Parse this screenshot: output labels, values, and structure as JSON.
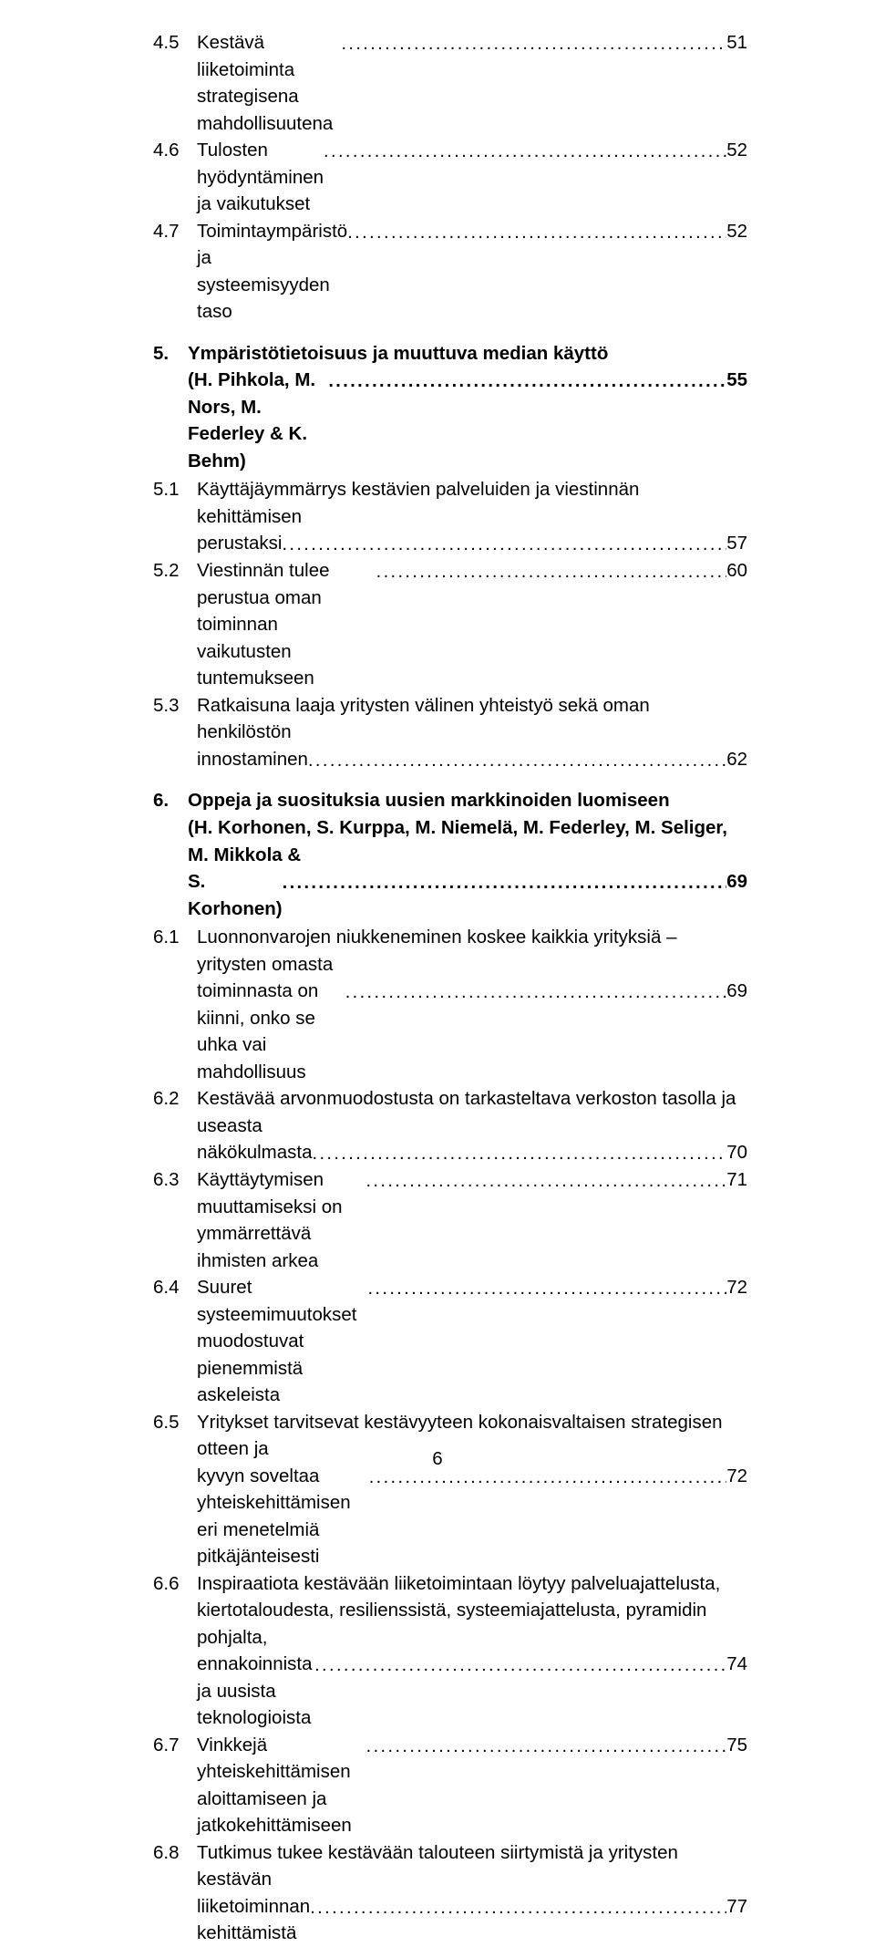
{
  "entries": [
    {
      "level": 2,
      "num": "4.5",
      "lines": [
        "Kestävä liiketoiminta strategisena mahdollisuutena"
      ],
      "page": "51"
    },
    {
      "level": 2,
      "num": "4.6",
      "lines": [
        "Tulosten hyödyntäminen ja vaikutukset"
      ],
      "page": "52"
    },
    {
      "level": 2,
      "num": "4.7",
      "lines": [
        "Toimintaympäristö ja systeemisyyden taso"
      ],
      "page": "52"
    },
    {
      "level": 1,
      "num": "5.",
      "lines": [
        "Ympäristötietoisuus ja muuttuva median käyttö",
        "(H. Pihkola, M. Nors, M. Federley & K. Behm)"
      ],
      "page": "55"
    },
    {
      "level": 2,
      "num": "5.1",
      "lines": [
        "Käyttäjäymmärrys kestävien palveluiden ja viestinnän kehittämisen",
        "perustaksi"
      ],
      "page": "57"
    },
    {
      "level": 2,
      "num": "5.2",
      "lines": [
        "Viestinnän tulee perustua oman toiminnan vaikutusten tuntemukseen"
      ],
      "page": "60"
    },
    {
      "level": 2,
      "num": "5.3",
      "lines": [
        "Ratkaisuna laaja yritysten välinen yhteistyö sekä oman henkilöstön",
        "innostaminen"
      ],
      "page": "62"
    },
    {
      "level": 1,
      "num": "6.",
      "lines": [
        "Oppeja ja suosituksia uusien markkinoiden luomiseen",
        "(H. Korhonen, S. Kurppa, M. Niemelä, M. Federley, M. Seliger, M. Mikkola &",
        "S. Korhonen)"
      ],
      "page": "69"
    },
    {
      "level": 2,
      "num": "6.1",
      "lines": [
        "Luonnonvarojen niukkeneminen koskee kaikkia yrityksiä – yritysten omasta",
        "toiminnasta on kiinni, onko se uhka vai mahdollisuus"
      ],
      "page": "69"
    },
    {
      "level": 2,
      "num": "6.2",
      "lines": [
        "Kestävää arvonmuodostusta on tarkasteltava verkoston tasolla ja useasta",
        "näkökulmasta"
      ],
      "page": "70"
    },
    {
      "level": 2,
      "num": "6.3",
      "lines": [
        "Käyttäytymisen muuttamiseksi on ymmärrettävä ihmisten arkea"
      ],
      "page": "71"
    },
    {
      "level": 2,
      "num": "6.4",
      "lines": [
        "Suuret systeemimuutokset muodostuvat pienemmistä askeleista"
      ],
      "page": "72"
    },
    {
      "level": 2,
      "num": "6.5",
      "lines": [
        "Yritykset tarvitsevat kestävyyteen kokonaisvaltaisen strategisen otteen ja",
        "kyvyn soveltaa yhteiskehittämisen eri menetelmiä pitkäjänteisesti"
      ],
      "page": "72"
    },
    {
      "level": 2,
      "num": "6.6",
      "lines": [
        "Inspiraatiota kestävään liiketoimintaan löytyy palveluajattelusta,",
        "kiertotaloudesta, resilienssistä, systeemiajattelusta, pyramidin pohjalta,",
        "ennakoinnista ja uusista teknologioista"
      ],
      "page": "74"
    },
    {
      "level": 2,
      "num": "6.7",
      "lines": [
        "Vinkkejä yhteiskehittämisen aloittamiseen ja jatkokehittämiseen"
      ],
      "page": "75"
    },
    {
      "level": 2,
      "num": "6.8",
      "lines": [
        "Tutkimus tukee kestävään talouteen siirtymistä ja yritysten kestävän",
        "liiketoiminnan kehittämistä"
      ],
      "page": "77"
    }
  ],
  "footer": "6"
}
